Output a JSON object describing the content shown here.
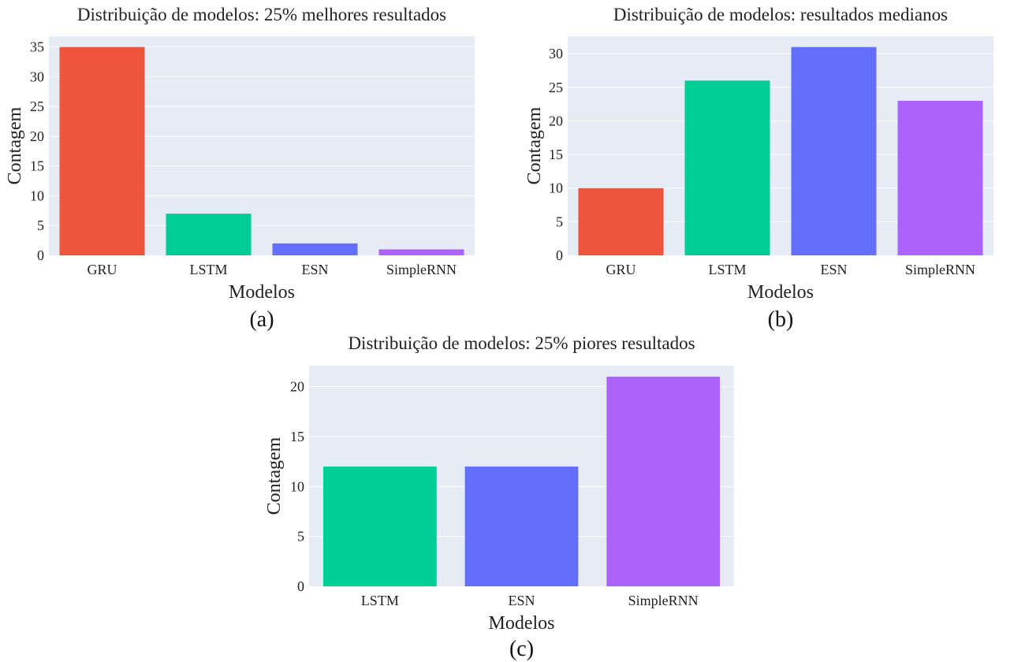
{
  "colors": {
    "GRU": "#ef553b",
    "LSTM": "#00cc96",
    "ESN": "#636efa",
    "SimpleRNN": "#ab63fa",
    "plot_background": "#e5ecf6"
  },
  "chart_data": [
    {
      "type": "bar",
      "panel_label": "(a)",
      "title": "Distribuição de modelos: 25% melhores resultados",
      "xlabel": "Modelos",
      "ylabel": "Contagem",
      "categories": [
        "GRU",
        "LSTM",
        "ESN",
        "SimpleRNN"
      ],
      "values": [
        35,
        7,
        2,
        1
      ],
      "ylim": [
        0,
        36.8
      ],
      "yticks": [
        0,
        5,
        10,
        15,
        20,
        25,
        30,
        35
      ],
      "grid": true
    },
    {
      "type": "bar",
      "panel_label": "(b)",
      "title": "Distribuição de modelos: resultados medianos",
      "xlabel": "Modelos",
      "ylabel": "Contagem",
      "categories": [
        "GRU",
        "LSTM",
        "ESN",
        "SimpleRNN"
      ],
      "values": [
        10,
        26,
        31,
        23
      ],
      "ylim": [
        0,
        32.6
      ],
      "yticks": [
        0,
        5,
        10,
        15,
        20,
        25,
        30
      ],
      "grid": true
    },
    {
      "type": "bar",
      "panel_label": "(c)",
      "title": "Distribuição de modelos: 25% piores resultados",
      "xlabel": "Modelos",
      "ylabel": "Contagem",
      "categories": [
        "LSTM",
        "ESN",
        "SimpleRNN"
      ],
      "values": [
        12,
        12,
        21
      ],
      "ylim": [
        0,
        22.1
      ],
      "yticks": [
        0,
        5,
        10,
        15,
        20
      ],
      "grid": true
    }
  ]
}
